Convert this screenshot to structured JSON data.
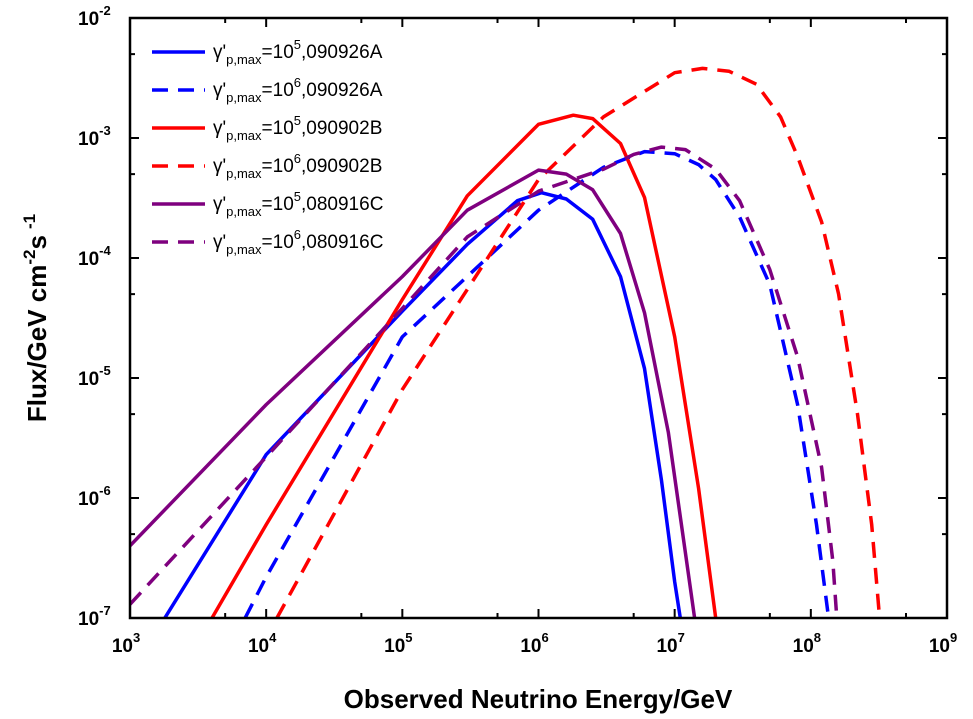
{
  "chart_data": {
    "type": "line",
    "xlabel": "Observed Neutrino Energy/GeV",
    "ylabel_parts": {
      "main": "Flux/GeV cm",
      "exp1": "-2",
      "mid": "s",
      "exp2": "-1"
    },
    "xscale": "log",
    "yscale": "log",
    "xlim": [
      1000,
      1000000000
    ],
    "ylim": [
      1e-07,
      0.01
    ],
    "x_ticks": [
      {
        "base": "10",
        "exp": "3"
      },
      {
        "base": "10",
        "exp": "4"
      },
      {
        "base": "10",
        "exp": "5"
      },
      {
        "base": "10",
        "exp": "6"
      },
      {
        "base": "10",
        "exp": "7"
      },
      {
        "base": "10",
        "exp": "8"
      },
      {
        "base": "10",
        "exp": "9"
      }
    ],
    "y_ticks": [
      {
        "base": "10",
        "exp": "-7"
      },
      {
        "base": "10",
        "exp": "-6"
      },
      {
        "base": "10",
        "exp": "-5"
      },
      {
        "base": "10",
        "exp": "-4"
      },
      {
        "base": "10",
        "exp": "-3"
      },
      {
        "base": "10",
        "exp": "-2"
      }
    ],
    "legend_position": "top-left",
    "series": [
      {
        "legend": {
          "pre": "γ'",
          "sub": "p,max",
          "eq": "=10",
          "sup": "5",
          "post": ",090926A"
        },
        "color": "#0000ff",
        "dash": "solid",
        "points": [
          [
            1800,
            1e-07
          ],
          [
            10000.0,
            2.3e-06
          ],
          [
            100000.0,
            3.6e-05
          ],
          [
            300000.0,
            0.00013
          ],
          [
            700000.0,
            0.0003
          ],
          [
            1050000.0,
            0.00035
          ],
          [
            1600000.0,
            0.00031
          ],
          [
            2500000.0,
            0.00021
          ],
          [
            4000000.0,
            7e-05
          ],
          [
            6000000.0,
            1.2e-05
          ],
          [
            8000000.0,
            1.4e-06
          ],
          [
            10000000.0,
            2e-07
          ],
          [
            11000000.0,
            1e-07
          ]
        ]
      },
      {
        "legend": {
          "pre": "γ'",
          "sub": "p,max",
          "eq": "=10",
          "sup": "6",
          "post": ",090926A"
        },
        "color": "#0000ff",
        "dash": "dashed",
        "points": [
          [
            7000,
            1e-07
          ],
          [
            10000.0,
            2.2e-07
          ],
          [
            100000.0,
            2.2e-05
          ],
          [
            1000000.0,
            0.00025
          ],
          [
            3000000.0,
            0.00057
          ],
          [
            6000000.0,
            0.00077
          ],
          [
            10000000.0,
            0.00074
          ],
          [
            15000000.0,
            0.0006
          ],
          [
            20000000.0,
            0.00045
          ],
          [
            30000000.0,
            0.00022
          ],
          [
            50000000.0,
            6e-05
          ],
          [
            80000000.0,
            6e-06
          ],
          [
            110000000.0,
            6e-07
          ],
          [
            135000000.0,
            1e-07
          ]
        ]
      },
      {
        "legend": {
          "pre": "γ'",
          "sub": "p,max",
          "eq": "=10",
          "sup": "5",
          "post": ",090902B"
        },
        "color": "#ff0000",
        "dash": "solid",
        "points": [
          [
            4000,
            1e-07
          ],
          [
            10000.0,
            6e-07
          ],
          [
            100000.0,
            4.5e-05
          ],
          [
            300000.0,
            0.00033
          ],
          [
            1000000.0,
            0.0013
          ],
          [
            1800000.0,
            0.00155
          ],
          [
            2500000.0,
            0.00145
          ],
          [
            4000000.0,
            0.0009
          ],
          [
            6000000.0,
            0.00032
          ],
          [
            10000000.0,
            2.2e-05
          ],
          [
            15000000.0,
            1.2e-06
          ],
          [
            20000000.0,
            1e-07
          ]
        ]
      },
      {
        "legend": {
          "pre": "γ'",
          "sub": "p,max",
          "eq": "=10",
          "sup": "6",
          "post": ",090902B"
        },
        "color": "#ff0000",
        "dash": "dashed",
        "points": [
          [
            12000.0,
            1e-07
          ],
          [
            100000.0,
            8e-06
          ],
          [
            1000000.0,
            0.00045
          ],
          [
            3000000.0,
            0.0015
          ],
          [
            10000000.0,
            0.0035
          ],
          [
            16000000.0,
            0.0038
          ],
          [
            25000000.0,
            0.0036
          ],
          [
            40000000.0,
            0.0028
          ],
          [
            60000000.0,
            0.0015
          ],
          [
            80000000.0,
            0.0007
          ],
          [
            120000000.0,
            0.0002
          ],
          [
            160000000.0,
            5e-05
          ],
          [
            220000000.0,
            5e-06
          ],
          [
            280000000.0,
            6e-07
          ],
          [
            320000000.0,
            1e-07
          ]
        ]
      },
      {
        "legend": {
          "pre": "γ'",
          "sub": "p,max",
          "eq": "=10",
          "sup": "5",
          "post": ",080916C"
        },
        "color": "#7f007f",
        "dash": "solid",
        "points": [
          [
            1000,
            4e-07
          ],
          [
            10000.0,
            6e-06
          ],
          [
            100000.0,
            7e-05
          ],
          [
            300000.0,
            0.00025
          ],
          [
            1000000.0,
            0.00054
          ],
          [
            1600000.0,
            0.0005
          ],
          [
            2500000.0,
            0.00037
          ],
          [
            4000000.0,
            0.00016
          ],
          [
            6000000.0,
            3.5e-05
          ],
          [
            9000000.0,
            3.5e-06
          ],
          [
            12000000.0,
            3.5e-07
          ],
          [
            14000000.0,
            1e-07
          ]
        ]
      },
      {
        "legend": {
          "pre": "γ'",
          "sub": "p,max",
          "eq": "=10",
          "sup": "6",
          "post": ",080916C"
        },
        "color": "#7f007f",
        "dash": "dashed",
        "points": [
          [
            1000,
            1.3e-07
          ],
          [
            10000.0,
            2.2e-06
          ],
          [
            100000.0,
            3.8e-05
          ],
          [
            300000.0,
            0.00015
          ],
          [
            1000000.0,
            0.00036
          ],
          [
            3000000.0,
            0.00055
          ],
          [
            5000000.0,
            0.00073
          ],
          [
            8000000.0,
            0.00084
          ],
          [
            12000000.0,
            0.0008
          ],
          [
            20000000.0,
            0.00055
          ],
          [
            30000000.0,
            0.0003
          ],
          [
            50000000.0,
            8e-05
          ],
          [
            80000000.0,
            1.5e-05
          ],
          [
            120000000.0,
            1.8e-06
          ],
          [
            145000000.0,
            3e-07
          ],
          [
            155000000.0,
            1e-07
          ]
        ]
      }
    ]
  }
}
